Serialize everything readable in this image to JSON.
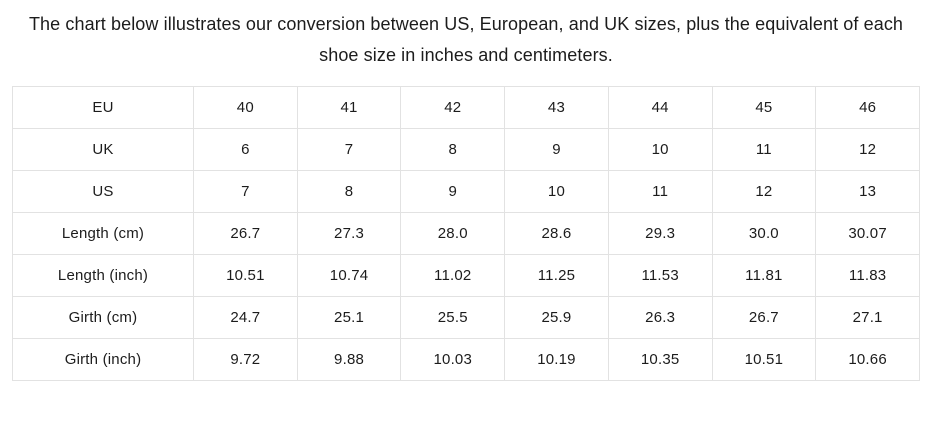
{
  "heading": "The chart below illustrates our conversion between US, European, and UK sizes, plus the equivalent of each shoe size in inches and centimeters.",
  "table": {
    "rows": [
      {
        "label": "EU",
        "values": [
          "40",
          "41",
          "42",
          "43",
          "44",
          "45",
          "46"
        ]
      },
      {
        "label": "UK",
        "values": [
          "6",
          "7",
          "8",
          "9",
          "10",
          "11",
          "12"
        ]
      },
      {
        "label": "US",
        "values": [
          "7",
          "8",
          "9",
          "10",
          "11",
          "12",
          "13"
        ]
      },
      {
        "label": "Length (cm)",
        "values": [
          "26.7",
          "27.3",
          "28.0",
          "28.6",
          "29.3",
          "30.0",
          "30.07"
        ]
      },
      {
        "label": "Length (inch)",
        "values": [
          "10.51",
          "10.74",
          "11.02",
          "11.25",
          "11.53",
          "11.81",
          "11.83"
        ]
      },
      {
        "label": "Girth (cm)",
        "values": [
          "24.7",
          "25.1",
          "25.5",
          "25.9",
          "26.3",
          "26.7",
          "27.1"
        ]
      },
      {
        "label": "Girth (inch)",
        "values": [
          "9.72",
          "9.88",
          "10.03",
          "10.19",
          "10.35",
          "10.51",
          "10.66"
        ]
      }
    ]
  },
  "colors": {
    "text": "#1c1c1c",
    "table_border": "#e2e2e2",
    "background": "#ffffff"
  }
}
